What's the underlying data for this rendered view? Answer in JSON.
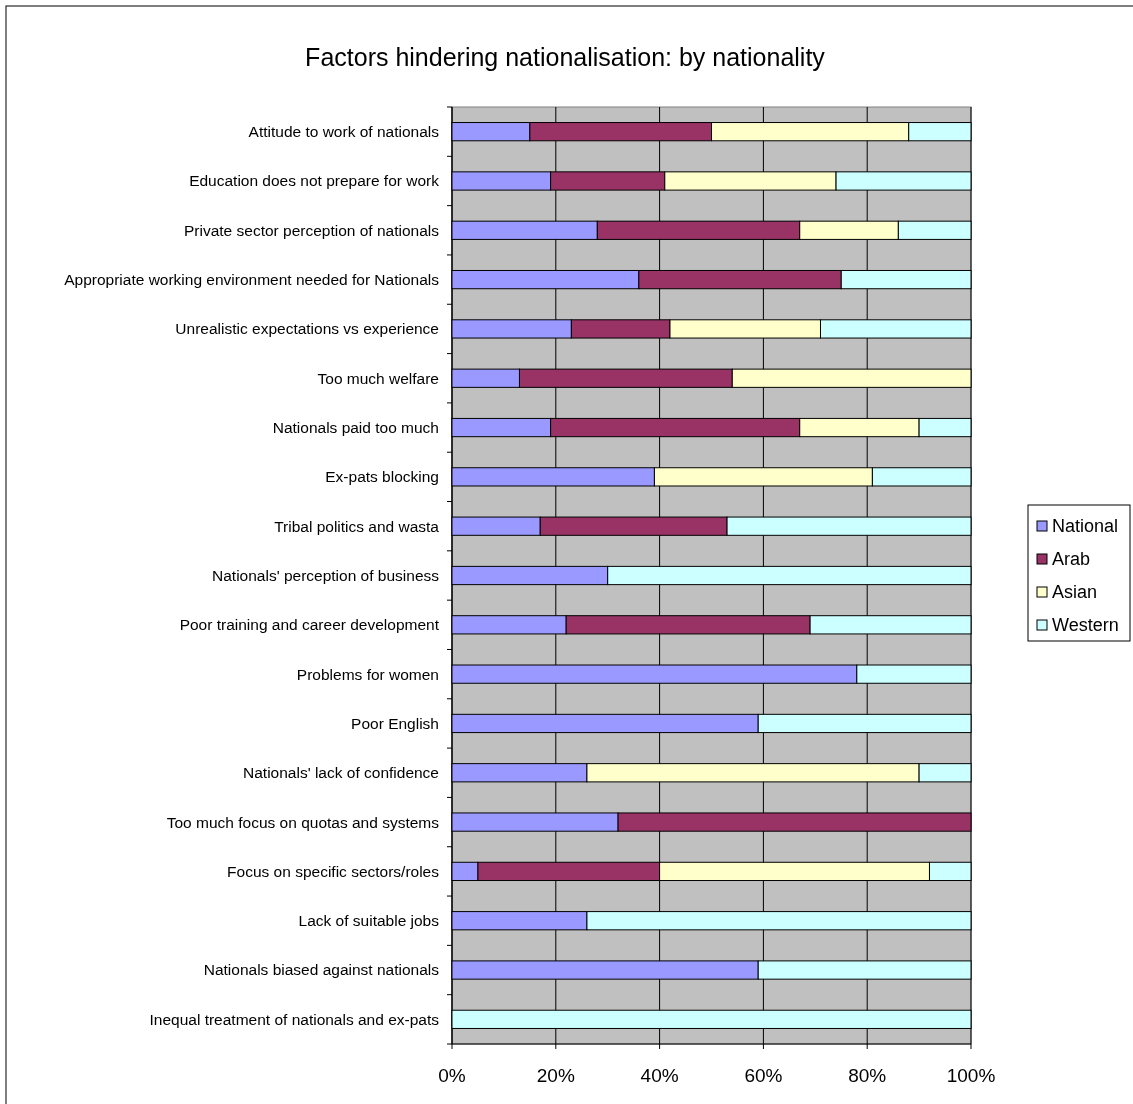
{
  "chart_data": {
    "type": "bar",
    "orientation": "horizontal",
    "stacked": true,
    "title": "Factors hindering nationalisation: by nationality",
    "categories": [
      "Attitude to work of nationals",
      "Education does not prepare for work",
      "Private sector perception of nationals",
      "Appropriate working environment needed for Nationals",
      "Unrealistic expectations vs experience",
      "Too much welfare",
      "Nationals paid too much",
      "Ex-pats blocking",
      "Tribal politics and wasta",
      "Nationals' perception of business",
      "Poor training and career development",
      "Problems for women",
      "Poor English",
      "Nationals' lack of confidence",
      "Too much focus on quotas and systems",
      "Focus on specific sectors/roles",
      "Lack of suitable jobs",
      "Nationals biased against nationals",
      "Inequal treatment of nationals and ex-pats"
    ],
    "series": [
      {
        "name": "National",
        "color": "#9999ff",
        "values": [
          15,
          19,
          28,
          36,
          23,
          13,
          19,
          39,
          17,
          30,
          22,
          78,
          59,
          26,
          32,
          5,
          26,
          59,
          0
        ]
      },
      {
        "name": "Arab",
        "color": "#993366",
        "values": [
          35,
          22,
          39,
          39,
          19,
          41,
          48,
          0,
          36,
          0,
          47,
          0,
          0,
          0,
          68,
          35,
          0,
          0,
          0
        ]
      },
      {
        "name": "Asian",
        "color": "#ffffcc",
        "values": [
          38,
          33,
          19,
          0,
          29,
          46,
          23,
          42,
          0,
          0,
          0,
          0,
          0,
          64,
          0,
          52,
          0,
          0,
          0
        ]
      },
      {
        "name": "Western",
        "color": "#ccffff",
        "values": [
          12,
          26,
          14,
          25,
          29,
          0,
          10,
          19,
          47,
          70,
          31,
          22,
          41,
          10,
          0,
          8,
          74,
          41,
          100
        ]
      }
    ],
    "xlim": [
      0,
      100
    ],
    "xticks": [
      {
        "value": 0,
        "label": "0%"
      },
      {
        "value": 20,
        "label": "20%"
      },
      {
        "value": 40,
        "label": "40%"
      },
      {
        "value": 60,
        "label": "60%"
      },
      {
        "value": 80,
        "label": "80%"
      },
      {
        "value": 100,
        "label": "100%"
      }
    ],
    "grid": "x",
    "legend": "right"
  }
}
